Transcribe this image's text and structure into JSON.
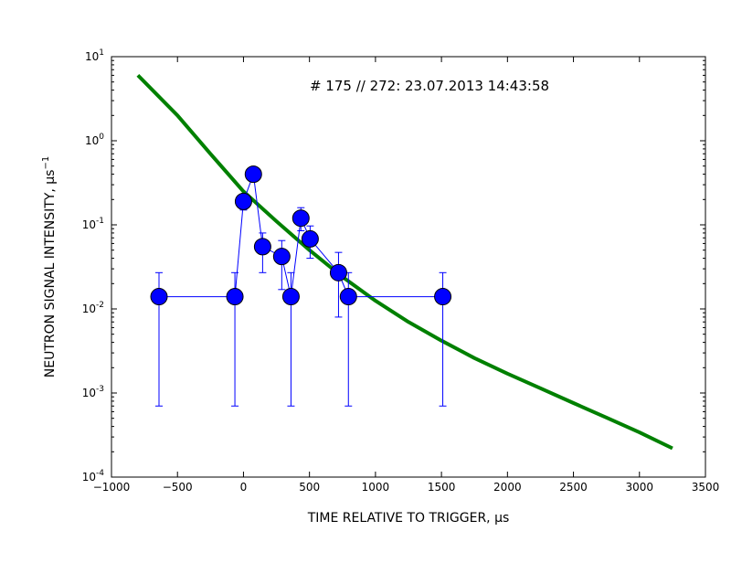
{
  "chart_data": {
    "type": "scatter",
    "annotation": "# 175 // 272: 23.07.2013 14:43:58",
    "xlabel": "TIME RELATIVE TO TRIGGER, μs",
    "ylabel": "NEUTRON SIGNAL INTENSITY, μs",
    "ylabel_exponent": "−1",
    "xlim": [
      -1000,
      3500
    ],
    "ylim": [
      0.0001,
      10
    ],
    "yscale": "log",
    "grid": false,
    "x_ticks": [
      -1000,
      -500,
      0,
      500,
      1000,
      1500,
      2000,
      2500,
      3000,
      3500
    ],
    "x_tick_labels": [
      "−1000",
      "−500",
      "0",
      "500",
      "1000",
      "1500",
      "2000",
      "2500",
      "3000",
      "3500"
    ],
    "y_ticks": [
      {
        "value": 10,
        "base": "10",
        "exp": "1"
      },
      {
        "value": 1,
        "base": "10",
        "exp": "0"
      },
      {
        "value": 0.1,
        "base": "10",
        "exp": "-1"
      },
      {
        "value": 0.01,
        "base": "10",
        "exp": "-2"
      },
      {
        "value": 0.001,
        "base": "10",
        "exp": "-3"
      },
      {
        "value": 0.0001,
        "base": "10",
        "exp": "-4"
      }
    ],
    "series": [
      {
        "kind": "measurement",
        "color": "#0000ff",
        "marker_color": "#0000ff",
        "points": [
          {
            "x": -640,
            "y": 0.014,
            "err_low": 0.0007,
            "err_high": 0.027
          },
          {
            "x": -65,
            "y": 0.014,
            "err_low": 0.0007,
            "err_high": 0.027
          },
          {
            "x": 0,
            "y": 0.19,
            "err_low": 0.15,
            "err_high": 0.22
          },
          {
            "x": 75,
            "y": 0.4,
            "err_low": 0.4,
            "err_high": 0.4
          },
          {
            "x": 145,
            "y": 0.055,
            "err_low": 0.027,
            "err_high": 0.08
          },
          {
            "x": 290,
            "y": 0.042,
            "err_low": 0.017,
            "err_high": 0.065
          },
          {
            "x": 360,
            "y": 0.014,
            "err_low": 0.0007,
            "err_high": 0.027
          },
          {
            "x": 435,
            "y": 0.12,
            "err_low": 0.085,
            "err_high": 0.16
          },
          {
            "x": 505,
            "y": 0.068,
            "err_low": 0.04,
            "err_high": 0.097
          },
          {
            "x": 720,
            "y": 0.027,
            "err_low": 0.008,
            "err_high": 0.047
          },
          {
            "x": 795,
            "y": 0.014,
            "err_low": 0.0007,
            "err_high": 0.027
          },
          {
            "x": 1510,
            "y": 0.014,
            "err_low": 0.0007,
            "err_high": 0.027
          }
        ]
      },
      {
        "kind": "fit",
        "color": "#008000",
        "x": [
          -800,
          -500,
          -250,
          0,
          250,
          500,
          750,
          1000,
          1250,
          1500,
          1750,
          2000,
          2250,
          2500,
          2750,
          3000,
          3250
        ],
        "y": [
          6.0,
          2.0,
          0.7,
          0.25,
          0.11,
          0.05,
          0.024,
          0.0125,
          0.007,
          0.0042,
          0.0026,
          0.0017,
          0.00114,
          0.00076,
          0.00051,
          0.00034,
          0.00022
        ]
      }
    ]
  }
}
